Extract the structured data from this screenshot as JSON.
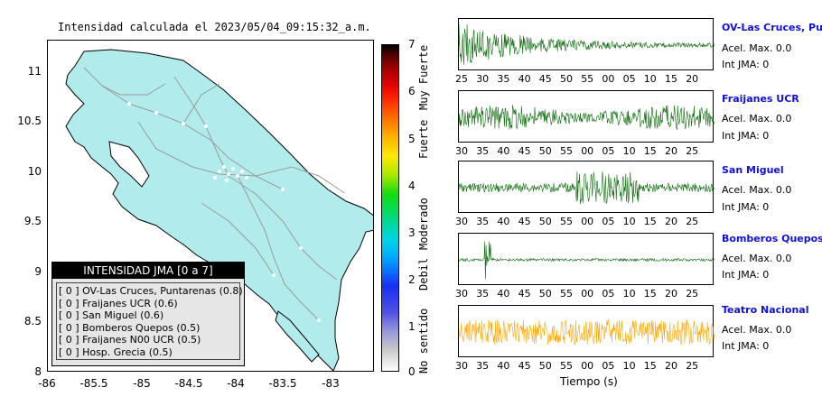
{
  "map": {
    "title": "Intensidad calculada el 2023/05/04_09:15:32_a.m.",
    "lat_ticks": [
      "11",
      "10.5",
      "10",
      "9.5",
      "9",
      "8.5",
      "8"
    ],
    "lon_ticks": [
      "-86",
      "-85.5",
      "-85",
      "-84.5",
      "-84",
      "-83.5",
      "-83"
    ],
    "land_color": "#b2ebec",
    "legend": {
      "title": "INTENSIDAD JMA [0 a 7]",
      "items": [
        "[ 0 ]  OV-Las Cruces, Puntarenas (0.8)",
        "[ 0 ]  Fraijanes UCR (0.6)",
        "[ 0 ]  San Miguel (0.6)",
        "[ 0 ]  Bomberos Quepos (0.5)",
        "[ 0 ]  Fraijanes N00 UCR (0.5)",
        "[ 0 ]  Hosp. Grecia (0.5)"
      ]
    }
  },
  "colorbar": {
    "ticks": [
      "7",
      "6",
      "5",
      "4",
      "3",
      "2",
      "1",
      "0"
    ],
    "labels": [
      "Muy Fuerte",
      "Fuerte",
      "Moderado",
      "Debil",
      "No sentido"
    ]
  },
  "waveforms": {
    "xlabel": "Tiempo (s)",
    "stations": [
      {
        "name": "OV-Las Cruces, Puntar",
        "accel": "Acel. Max. 0.0",
        "jma": "Int JMA: 0",
        "color": "#0b6b0b",
        "ticks": [
          "25",
          "30",
          "35",
          "40",
          "45",
          "50",
          "55",
          "00",
          "05",
          "10",
          "15",
          "20"
        ]
      },
      {
        "name": "Fraijanes UCR",
        "accel": "Acel. Max. 0.0",
        "jma": "Int JMA: 0",
        "color": "#0b6b0b",
        "ticks": [
          "30",
          "35",
          "40",
          "45",
          "50",
          "55",
          "00",
          "05",
          "10",
          "15",
          "20",
          "25"
        ]
      },
      {
        "name": "San Miguel",
        "accel": "Acel. Max. 0.0",
        "jma": "Int JMA: 0",
        "color": "#0b6b0b",
        "ticks": [
          "30",
          "35",
          "40",
          "45",
          "50",
          "55",
          "00",
          "05",
          "10",
          "15",
          "20",
          "25"
        ]
      },
      {
        "name": "Bomberos Quepos",
        "accel": "Acel. Max. 0.0",
        "jma": "Int JMA: 0",
        "color": "#0b6b0b",
        "ticks": [
          "30",
          "35",
          "40",
          "45",
          "50",
          "55",
          "00",
          "05",
          "10",
          "15",
          "20",
          "25"
        ]
      },
      {
        "name": "Teatro Nacional",
        "accel": "Acel. Max. 0.0",
        "jma": "Int JMA: 0",
        "color": "#ffa500",
        "ticks": [
          "30",
          "35",
          "40",
          "45",
          "50",
          "55",
          "00",
          "05",
          "10",
          "15",
          "20",
          "25"
        ]
      }
    ]
  }
}
